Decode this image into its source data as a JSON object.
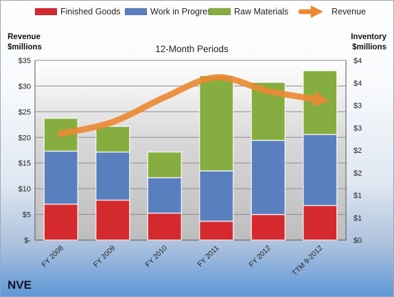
{
  "chart_data": {
    "type": "bar",
    "stacked": true,
    "title": "12-Month Periods",
    "company": "NVE",
    "categories": [
      "FY 2008",
      "FY 2009",
      "FY 2010",
      "FY 2011",
      "FY 2012",
      "TTM 9-2012"
    ],
    "ylabel_left": [
      "Revenue",
      "$millions"
    ],
    "ylabel_right": [
      "Inventory",
      "$millions"
    ],
    "ylim_left": [
      0,
      35
    ],
    "ylim_right": [
      0,
      4
    ],
    "yticks_left": [
      "$-",
      "$5",
      "$10",
      "$15",
      "$20",
      "$25",
      "$30",
      "$35"
    ],
    "yticks_right": [
      "$0",
      "$1",
      "$1",
      "$2",
      "$2",
      "$3",
      "$3",
      "$4",
      "$4"
    ],
    "series": [
      {
        "name": "Finished Goods",
        "axis": "right",
        "color": "#d42a2e",
        "values": [
          0.8,
          0.89,
          0.6,
          0.42,
          0.57,
          0.77
        ]
      },
      {
        "name": "Work in Progress",
        "axis": "right",
        "color": "#5a7fbf",
        "values": [
          1.18,
          1.07,
          0.79,
          1.12,
          1.65,
          1.58
        ]
      },
      {
        "name": "Raw Materials",
        "axis": "right",
        "color": "#85ad3f",
        "values": [
          0.73,
          0.57,
          0.57,
          2.12,
          1.29,
          1.42
        ]
      }
    ],
    "line_series": {
      "name": "Revenue",
      "axis": "left",
      "color": "#ec8a35",
      "values": [
        20.7,
        23.0,
        27.8,
        31.7,
        29.0,
        27.3
      ]
    },
    "legend_position": "top",
    "grid": true
  }
}
